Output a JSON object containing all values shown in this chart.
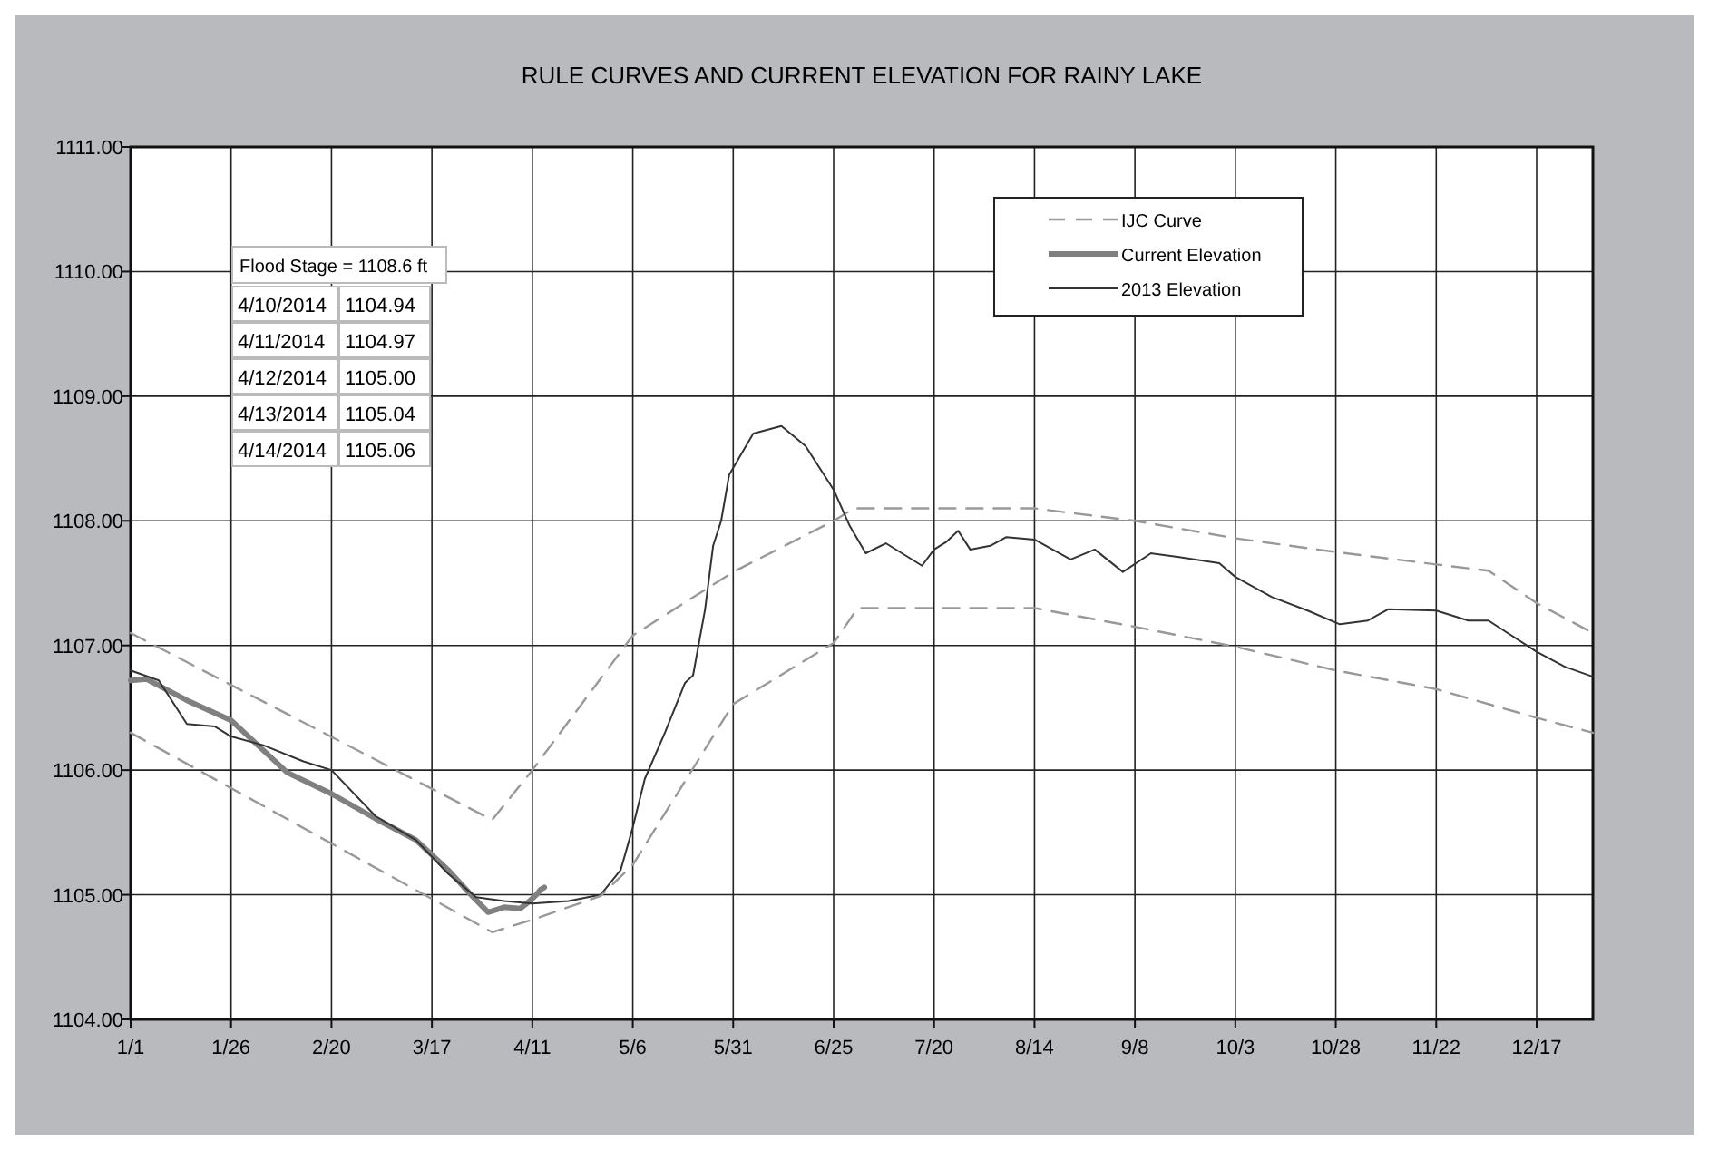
{
  "chart_data": {
    "type": "line",
    "title": "RULE CURVES AND CURRENT ELEVATION FOR RAINY LAKE",
    "xlim": [
      "--01-01",
      "--12-31"
    ],
    "xticks": [
      {
        "value": "--01-01",
        "label": "1/1"
      },
      {
        "value": "--01-26",
        "label": "1/26"
      },
      {
        "value": "--02-20",
        "label": "2/20"
      },
      {
        "value": "--03-17",
        "label": "3/17"
      },
      {
        "value": "--04-11",
        "label": "4/11"
      },
      {
        "value": "--05-06",
        "label": "5/6"
      },
      {
        "value": "--05-31",
        "label": "5/31"
      },
      {
        "value": "--06-25",
        "label": "6/25"
      },
      {
        "value": "--07-20",
        "label": "7/20"
      },
      {
        "value": "--08-14",
        "label": "8/14"
      },
      {
        "value": "--09-08",
        "label": "9/8"
      },
      {
        "value": "--10-03",
        "label": "10/3"
      },
      {
        "value": "--10-28",
        "label": "10/28"
      },
      {
        "value": "--11-22",
        "label": "11/22"
      },
      {
        "value": "--12-17",
        "label": "12/17"
      }
    ],
    "ylim": [
      1104,
      1111
    ],
    "yticks": [
      {
        "value": 1104,
        "label": "1104.00"
      },
      {
        "value": 1105,
        "label": "1105.00"
      },
      {
        "value": 1106,
        "label": "1106.00"
      },
      {
        "value": 1107,
        "label": "1107.00"
      },
      {
        "value": 1108,
        "label": "1108.00"
      },
      {
        "value": 1109,
        "label": "1109.00"
      },
      {
        "value": 1110,
        "label": "1110.00"
      },
      {
        "value": 1111,
        "label": "1111.00"
      }
    ],
    "grid": true,
    "legend": "top right",
    "annotations": [
      "Flood Stage = 1108.6 ft",
      "4/10/2014",
      "1104.94",
      "4/11/2014",
      "1104.97",
      "4/12/2014",
      "1105.00",
      "4/13/2014",
      "1105.04",
      "4/14/2014",
      "1105.06"
    ],
    "series": [
      {
        "name": "IJC Curve",
        "color": "#999999",
        "line_style": "dashed",
        "x": [
          "--01-01",
          "--04-01",
          "--04-11",
          "--05-06",
          "--05-31",
          "--06-25",
          "--06-30",
          "--08-14",
          "--09-08",
          "--10-03",
          "--10-28",
          "--11-22",
          "--12-05",
          "--12-17",
          "--12-31"
        ],
        "values": [
          1107.1,
          1105.6,
          1106.0,
          1107.08,
          1107.59,
          1108.0,
          1108.1,
          1108.1,
          1108.0,
          1107.86,
          1107.75,
          1107.65,
          1107.6,
          1107.34,
          1107.1
        ]
      },
      {
        "name": "Current Elevation",
        "color": "#808080",
        "line_style": "solid",
        "x": [
          "--01-01",
          "--01-05",
          "--01-15",
          "--01-26",
          "--02-09",
          "--02-20",
          "--03-03",
          "--03-13",
          "--03-21",
          "--03-27",
          "--03-31",
          "--04-04",
          "--04-08",
          "--04-10",
          "--04-11",
          "--04-12",
          "--04-13",
          "--04-14"
        ],
        "values": [
          1106.72,
          1106.73,
          1106.56,
          1106.4,
          1105.98,
          1105.81,
          1105.61,
          1105.44,
          1105.2,
          1104.99,
          1104.86,
          1104.9,
          1104.89,
          1104.94,
          1104.97,
          1105.0,
          1105.04,
          1105.06
        ]
      },
      {
        "name": "2013 Elevation",
        "color": "#333333",
        "line_style": "solid",
        "x": [
          "--01-01",
          "--01-08",
          "--01-15",
          "--01-22",
          "--01-26",
          "--02-03",
          "--02-13",
          "--02-20",
          "--03-03",
          "--03-13",
          "--03-21",
          "--03-28",
          "--04-04",
          "--04-11",
          "--04-20",
          "--04-28",
          "--05-03",
          "--05-06",
          "--05-09",
          "--05-14",
          "--05-19",
          "--05-21",
          "--05-24",
          "--05-26",
          "--05-28",
          "--05-30",
          "--06-05",
          "--06-12",
          "--06-18",
          "--06-25",
          "--06-29",
          "--07-03",
          "--07-08",
          "--07-17",
          "--07-20",
          "--07-23",
          "--07-26",
          "--07-29",
          "--08-03",
          "--08-07",
          "--08-14",
          "--08-23",
          "--08-29",
          "--09-05",
          "--09-12",
          "--09-19",
          "--09-29",
          "--10-03",
          "--10-12",
          "--10-21",
          "--10-29",
          "--11-05",
          "--11-10",
          "--11-22",
          "--11-30",
          "--12-05",
          "--12-17",
          "--12-24",
          "--12-31"
        ],
        "values": [
          1106.8,
          1106.72,
          1106.37,
          1106.35,
          1106.27,
          1106.2,
          1106.07,
          1106.0,
          1105.63,
          1105.44,
          1105.17,
          1104.98,
          1104.95,
          1104.93,
          1104.95,
          1105.0,
          1105.2,
          1105.54,
          1105.93,
          1106.3,
          1106.7,
          1106.76,
          1107.29,
          1107.8,
          1108.0,
          1108.37,
          1108.7,
          1108.76,
          1108.6,
          1108.25,
          1107.96,
          1107.74,
          1107.82,
          1107.64,
          1107.77,
          1107.83,
          1107.92,
          1107.77,
          1107.8,
          1107.87,
          1107.85,
          1107.69,
          1107.77,
          1107.59,
          1107.74,
          1107.71,
          1107.66,
          1107.55,
          1107.39,
          1107.28,
          1107.17,
          1107.2,
          1107.29,
          1107.28,
          1107.2,
          1107.2,
          1106.95,
          1106.83,
          1106.75
        ]
      },
      {
        "color": "#999999",
        "line_style": "dashed",
        "x": [
          "--01-01",
          "--04-01",
          "--04-11",
          "--04-28",
          "--05-06",
          "--05-31",
          "--06-25",
          "--07-01",
          "--08-14",
          "--09-08",
          "--10-03",
          "--10-28",
          "--11-22",
          "--12-17",
          "--12-31"
        ],
        "values": [
          1106.3,
          1104.7,
          1104.8,
          1104.99,
          1105.24,
          1106.53,
          1107.02,
          1107.3,
          1107.3,
          1107.15,
          1106.99,
          1106.8,
          1106.65,
          1106.42,
          1106.3
        ]
      }
    ]
  }
}
